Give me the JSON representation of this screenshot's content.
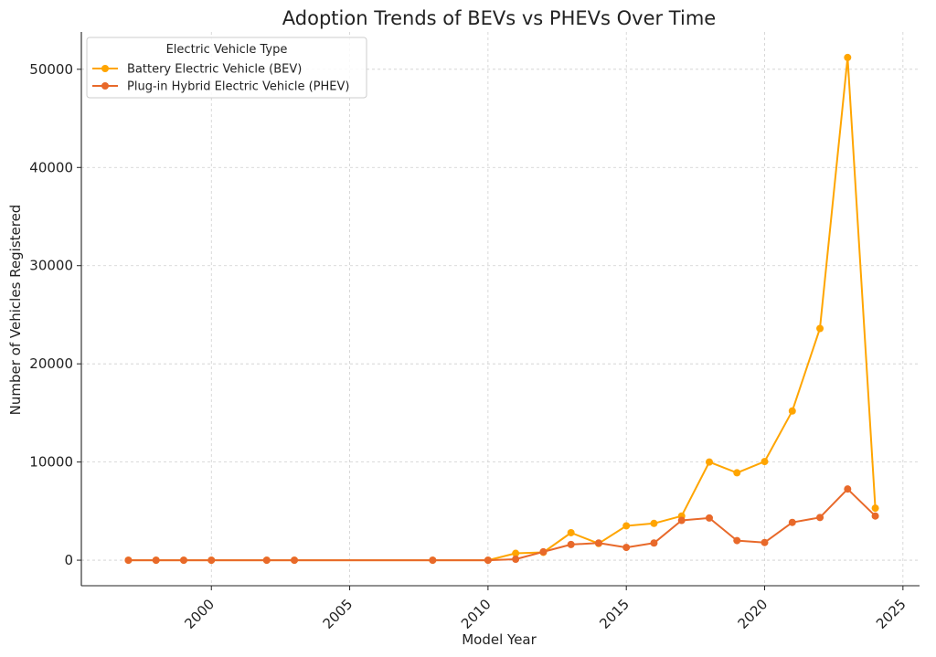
{
  "chart_data": {
    "type": "line",
    "title": "Adoption Trends of BEVs vs PHEVs Over Time",
    "xlabel": "Model Year",
    "ylabel": "Number of Vehicles Registered",
    "xlim": [
      1995.3,
      2025.6
    ],
    "ylim": [
      -2600,
      53800
    ],
    "xticks": [
      2000,
      2005,
      2010,
      2015,
      2020,
      2025
    ],
    "yticks": [
      0,
      10000,
      20000,
      30000,
      40000,
      50000
    ],
    "grid": true,
    "legend": {
      "title": "Electric Vehicle Type",
      "position": "top-left"
    },
    "series": [
      {
        "name": "Battery Electric Vehicle (BEV)",
        "color": "#FFA500",
        "x": [
          1997,
          1998,
          1999,
          2000,
          2002,
          2003,
          2008,
          2010,
          2011,
          2012,
          2013,
          2014,
          2015,
          2016,
          2017,
          2018,
          2019,
          2020,
          2021,
          2022,
          2023,
          2024
        ],
        "y": [
          0,
          0,
          0,
          0,
          0,
          0,
          0,
          0,
          700,
          800,
          2800,
          1700,
          3500,
          3750,
          4500,
          10000,
          8900,
          10050,
          15200,
          23600,
          51200,
          5300
        ]
      },
      {
        "name": "Plug-in Hybrid Electric Vehicle (PHEV)",
        "color": "#E8692A",
        "x": [
          1997,
          1998,
          1999,
          2000,
          2002,
          2003,
          2008,
          2010,
          2011,
          2012,
          2013,
          2014,
          2015,
          2016,
          2017,
          2018,
          2019,
          2020,
          2021,
          2022,
          2023,
          2024
        ],
        "y": [
          0,
          0,
          0,
          0,
          0,
          0,
          0,
          0,
          100,
          850,
          1600,
          1750,
          1300,
          1750,
          4050,
          4300,
          2000,
          1800,
          3850,
          4350,
          7250,
          4500
        ]
      }
    ]
  }
}
